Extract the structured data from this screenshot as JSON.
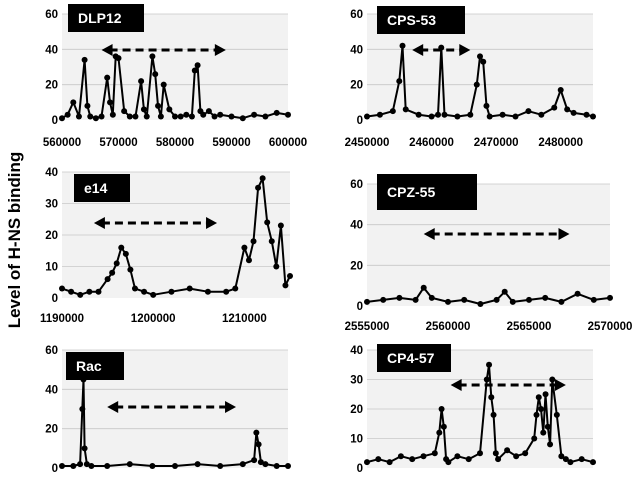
{
  "ylabel": "Level of H-NS binding",
  "chart_data": [
    {
      "type": "scatter",
      "title": "DLP12",
      "xlim": [
        560000,
        600000
      ],
      "ylim": [
        0,
        60
      ],
      "yticks": [
        0,
        20,
        40,
        60
      ],
      "xticks": [
        560000,
        570000,
        580000,
        590000,
        600000
      ],
      "arrow": [
        567000,
        589000
      ],
      "x": [
        560000,
        561000,
        562000,
        563000,
        564000,
        564500,
        565000,
        566000,
        567000,
        568000,
        568500,
        569000,
        569500,
        570000,
        571000,
        572000,
        573000,
        574000,
        574500,
        575000,
        576000,
        576500,
        577000,
        577500,
        578000,
        579000,
        580000,
        581000,
        582000,
        583000,
        583500,
        584000,
        584500,
        585000,
        586000,
        587000,
        588000,
        590000,
        592000,
        594000,
        596000,
        598000,
        600000
      ],
      "y": [
        1,
        3,
        10,
        2,
        34,
        8,
        2,
        1,
        2,
        24,
        10,
        3,
        36,
        35,
        5,
        2,
        2,
        22,
        6,
        2,
        36,
        26,
        8,
        2,
        20,
        6,
        2,
        2,
        3,
        2,
        28,
        31,
        5,
        3,
        5,
        2,
        3,
        2,
        1,
        3,
        2,
        4,
        3
      ]
    },
    {
      "type": "scatter",
      "title": "CPS-53",
      "xlim": [
        2450000,
        2485000
      ],
      "ylim": [
        0,
        60
      ],
      "yticks": [
        0,
        20,
        40,
        60
      ],
      "xticks": [
        2450000,
        2460000,
        2470000,
        2480000
      ],
      "arrow": [
        2457000,
        2466000
      ],
      "x": [
        2450000,
        2452000,
        2454000,
        2455000,
        2455500,
        2456000,
        2458000,
        2460000,
        2461000,
        2461500,
        2462000,
        2464000,
        2466000,
        2467000,
        2467500,
        2468000,
        2468500,
        2469000,
        2471000,
        2473000,
        2475000,
        2477000,
        2479000,
        2480000,
        2481000,
        2482000,
        2484000,
        2485000
      ],
      "y": [
        2,
        3,
        5,
        22,
        42,
        6,
        3,
        2,
        3,
        41,
        3,
        2,
        3,
        20,
        36,
        33,
        8,
        2,
        3,
        2,
        5,
        3,
        7,
        17,
        6,
        4,
        3,
        2
      ]
    },
    {
      "type": "scatter",
      "title": "e14",
      "xlim": [
        1190000,
        1215000
      ],
      "ylim": [
        0,
        40
      ],
      "yticks": [
        0,
        10,
        20,
        30,
        40
      ],
      "xticks": [
        1190000,
        1200000,
        1210000
      ],
      "arrow": [
        1193500,
        1207000
      ],
      "x": [
        1190000,
        1191000,
        1192000,
        1193000,
        1194000,
        1195000,
        1195500,
        1196000,
        1196500,
        1197000,
        1197500,
        1198000,
        1199000,
        1200000,
        1202000,
        1204000,
        1206000,
        1208000,
        1209000,
        1210000,
        1210500,
        1211000,
        1211500,
        1212000,
        1212500,
        1213000,
        1213500,
        1214000,
        1214500,
        1215000
      ],
      "y": [
        3,
        2,
        1,
        2,
        2,
        6,
        8,
        11,
        16,
        14,
        9,
        3,
        2,
        1,
        2,
        3,
        2,
        2,
        3,
        16,
        12,
        18,
        35,
        38,
        24,
        18,
        10,
        23,
        4,
        7
      ]
    },
    {
      "type": "scatter",
      "title": "CPZ-55",
      "xlim": [
        2555000,
        2570000
      ],
      "ylim": [
        0,
        60
      ],
      "yticks": [
        0,
        20,
        40,
        60
      ],
      "xticks": [
        2555000,
        2560000,
        2565000,
        2570000
      ],
      "arrow": [
        2558500,
        2567500
      ],
      "x": [
        2555000,
        2556000,
        2557000,
        2558000,
        2558500,
        2559000,
        2560000,
        2561000,
        2562000,
        2563000,
        2563500,
        2564000,
        2565000,
        2566000,
        2567000,
        2568000,
        2569000,
        2570000
      ],
      "y": [
        2,
        3,
        4,
        3,
        9,
        4,
        2,
        3,
        1,
        3,
        7,
        2,
        3,
        4,
        2,
        6,
        3,
        4
      ]
    },
    {
      "type": "scatter",
      "title": "Rac",
      "xlim": [
        0,
        100
      ],
      "ylim": [
        0,
        60
      ],
      "yticks": [
        0,
        20,
        40,
        60
      ],
      "xticks": [],
      "arrow": [
        20,
        77
      ],
      "x": [
        0,
        5,
        8,
        9,
        9.5,
        10,
        11,
        13,
        20,
        30,
        40,
        50,
        60,
        70,
        80,
        85,
        86,
        87,
        88,
        90,
        95,
        100
      ],
      "y": [
        1,
        1,
        2,
        30,
        45,
        10,
        2,
        1,
        1,
        2,
        1,
        1,
        2,
        1,
        2,
        4,
        18,
        12,
        3,
        2,
        1,
        1
      ]
    },
    {
      "type": "scatter",
      "title": "CP4-57",
      "xlim": [
        0,
        100
      ],
      "ylim": [
        0,
        40
      ],
      "yticks": [
        0,
        10,
        20,
        30,
        40
      ],
      "xticks": [],
      "arrow": [
        37,
        88
      ],
      "x": [
        0,
        5,
        10,
        15,
        20,
        25,
        30,
        32,
        33,
        34,
        35,
        36,
        40,
        45,
        50,
        53,
        54,
        55,
        56,
        57,
        58,
        62,
        66,
        70,
        74,
        75,
        76,
        77,
        78,
        79,
        80,
        81,
        82,
        84,
        86,
        88,
        90,
        95,
        100
      ],
      "y": [
        2,
        3,
        2,
        4,
        3,
        4,
        5,
        12,
        20,
        14,
        3,
        2,
        4,
        3,
        5,
        30,
        35,
        24,
        18,
        5,
        3,
        6,
        4,
        5,
        10,
        18,
        24,
        20,
        12,
        25,
        14,
        8,
        30,
        18,
        4,
        3,
        2,
        3,
        2
      ]
    }
  ]
}
